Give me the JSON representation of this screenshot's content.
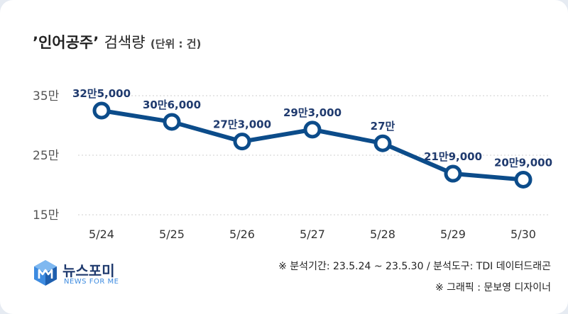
{
  "title": {
    "keyword": "’인어공주’",
    "main": "검색량",
    "unit": "(단위 : 건)"
  },
  "colors": {
    "line": "#0c4c8a",
    "label": "#1f3a6e",
    "axis_text": "#555555",
    "grid": "#cfcfcf"
  },
  "chart_data": {
    "type": "line",
    "categories": [
      "5/24",
      "5/25",
      "5/26",
      "5/27",
      "5/28",
      "5/29",
      "5/30"
    ],
    "values": [
      325000,
      306000,
      273000,
      293000,
      270000,
      219000,
      209000
    ],
    "data_labels": [
      "32만5,000",
      "30만6,000",
      "27만3,000",
      "29만3,000",
      "27만",
      "21만9,000",
      "20만9,000"
    ],
    "y_ticks": [
      {
        "value": 150000,
        "label": "15만"
      },
      {
        "value": 250000,
        "label": "25만"
      },
      {
        "value": 350000,
        "label": "35만"
      }
    ],
    "ylim": [
      150000,
      350000
    ],
    "grid": true
  },
  "logo": {
    "name": "뉴스포미",
    "tagline": "NEWS FOR ME",
    "icon": "cube-m-icon"
  },
  "notes": [
    "※ 분석기간: 23.5.24 ~ 23.5.30 / 분석도구: TDI 데이터드래곤",
    "※ 그래픽 : 문보영 디자이너"
  ]
}
